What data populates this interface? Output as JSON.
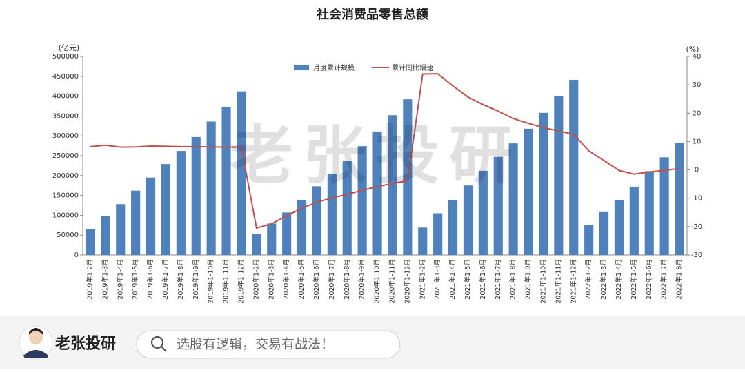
{
  "chart_data": {
    "type": "bar",
    "title": "社会消费品零售总额",
    "y_unit": "(亿元)",
    "y2_unit": "(%)",
    "watermark": "老张投研",
    "legend": "top",
    "categories": [
      "2019年1-2月",
      "2019年1-3月",
      "2019年1-4月",
      "2019年1-5月",
      "2019年1-6月",
      "2019年1-7月",
      "2019年1-8月",
      "2019年1-9月",
      "2019年1-10月",
      "2019年1-11月",
      "2019年1-12月",
      "2020年1-2月",
      "2020年1-3月",
      "2020年1-4月",
      "2020年1-5月",
      "2020年1-6月",
      "2020年1-7月",
      "2020年1-8月",
      "2020年1-9月",
      "2020年1-10月",
      "2020年1-11月",
      "2020年1-12月",
      "2021年1-2月",
      "2021年1-3月",
      "2021年1-4月",
      "2021年1-5月",
      "2021年1-6月",
      "2021年1-7月",
      "2021年1-8月",
      "2021年1-9月",
      "2021年1-10月",
      "2021年1-11月",
      "2021年1-12月",
      "2022年1-2月",
      "2022年1-3月",
      "2022年1-4月",
      "2022年1-5月",
      "2022年1-6月",
      "2022年1-7月",
      "2022年1-8月"
    ],
    "series": [
      {
        "name": "月度累计规模",
        "type": "bar",
        "color": "#4f81bd",
        "values": [
          66000,
          98000,
          128000,
          162000,
          195000,
          229000,
          262000,
          297000,
          336000,
          373000,
          412000,
          52000,
          79000,
          107000,
          139000,
          173000,
          205000,
          237000,
          274000,
          311000,
          352000,
          392000,
          69000,
          105000,
          138000,
          175000,
          212000,
          247000,
          281000,
          318000,
          358000,
          400000,
          441000,
          75000,
          108000,
          138000,
          172000,
          211000,
          246000,
          282000
        ]
      },
      {
        "name": "累计同比增速",
        "type": "line",
        "axis": "y2",
        "color": "#c0504d",
        "values": [
          8.2,
          8.7,
          8.0,
          8.1,
          8.4,
          8.3,
          8.2,
          8.2,
          8.1,
          8.0,
          8.0,
          -20.5,
          -19.0,
          -16.2,
          -13.5,
          -11.4,
          -9.9,
          -8.6,
          -7.2,
          -5.9,
          -4.8,
          -3.9,
          33.8,
          33.9,
          29.6,
          25.7,
          23.0,
          20.7,
          18.1,
          16.4,
          14.9,
          13.7,
          12.5,
          6.7,
          3.3,
          -0.2,
          -1.5,
          -0.7,
          -0.2,
          0.5
        ]
      }
    ],
    "ylim": [
      0,
      500000
    ],
    "yticks": [
      0,
      50000,
      100000,
      150000,
      200000,
      250000,
      300000,
      350000,
      400000,
      450000,
      500000
    ],
    "y2lim": [
      -30,
      40
    ],
    "y2ticks": [
      -30,
      -20,
      -10,
      0,
      10,
      20,
      30,
      40
    ]
  },
  "footer": {
    "name": "老张投研",
    "search_placeholder": "选股有逻辑，交易有战法！"
  }
}
